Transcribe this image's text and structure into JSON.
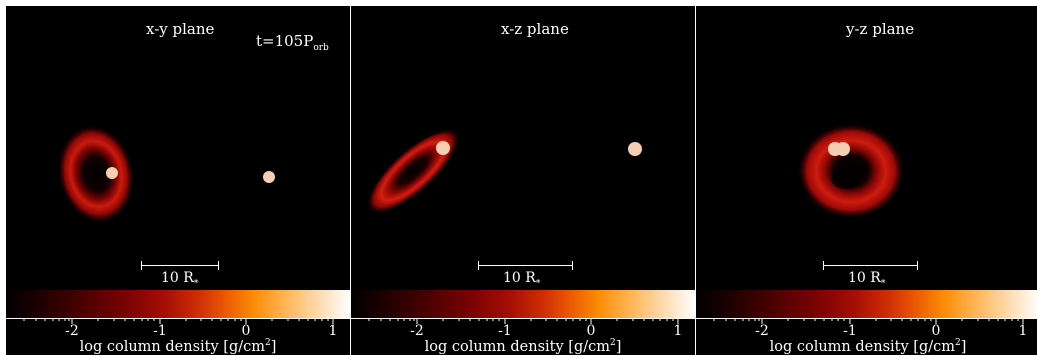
{
  "panels": [
    {
      "title": "x-y plane",
      "time": "t=105",
      "time_sub": "orb",
      "time_base": "P",
      "scale_text": "10 R",
      "scale_sub": "*"
    },
    {
      "title": "x-z plane",
      "scale_text": "10 R",
      "scale_sub": "*"
    },
    {
      "title": "y-z plane",
      "scale_text": "10 R",
      "scale_sub": "*"
    }
  ],
  "colorbar": {
    "ticks": [
      "-2",
      "-1",
      "0",
      "1"
    ],
    "label": "log column density [g/cm",
    "label_sup": "2",
    "label_end": "]"
  },
  "colors": {
    "background": "#000000",
    "star": "#f6cfb2",
    "disk": "#c8140a"
  }
}
